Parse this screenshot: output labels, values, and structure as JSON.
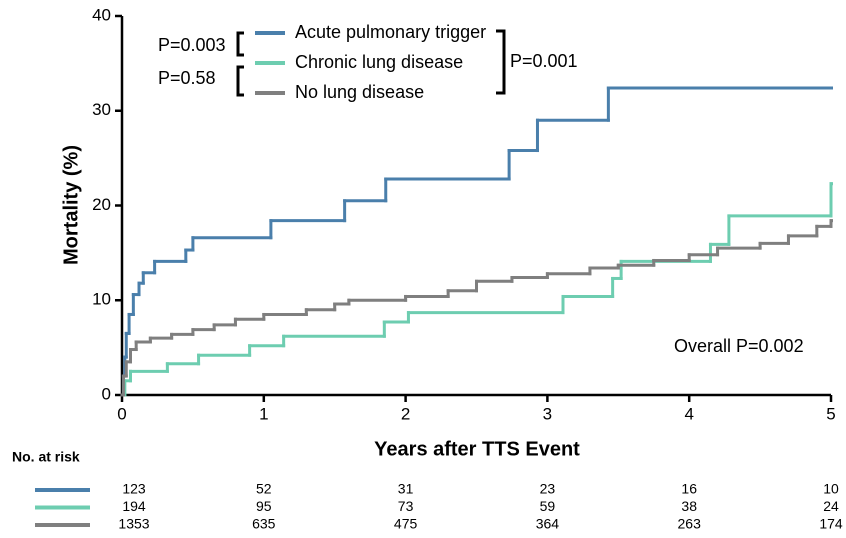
{
  "chart_data": {
    "type": "line",
    "step": "post",
    "xlabel": "Years after TTS Event",
    "ylabel": "Mortality (%)",
    "xlim": [
      0,
      5
    ],
    "xticks": [
      0,
      1,
      2,
      3,
      4,
      5
    ],
    "ylim": [
      0,
      40
    ],
    "yticks": [
      0,
      10,
      20,
      30,
      40
    ],
    "series": [
      {
        "name": "Acute pulmonary trigger",
        "color": "#4a7fab",
        "x": [
          0,
          0.01,
          0.02,
          0.03,
          0.05,
          0.08,
          0.12,
          0.15,
          0.23,
          0.45,
          0.5,
          1.05,
          1.57,
          1.86,
          2.73,
          2.93,
          3.43,
          5
        ],
        "values": [
          0,
          2,
          4,
          6.5,
          8.5,
          10.6,
          11.8,
          12.9,
          14.1,
          15.3,
          16.6,
          18.4,
          20.5,
          22.8,
          25.8,
          29,
          32.4,
          32.4
        ],
        "at_risk": [
          123,
          52,
          31,
          23,
          16,
          10
        ]
      },
      {
        "name": "Chronic lung disease",
        "color": "#6dcdb0",
        "x": [
          0,
          0.02,
          0.06,
          0.32,
          0.54,
          0.9,
          1.14,
          1.85,
          2.02,
          3.11,
          3.46,
          3.52,
          4.15,
          4.28,
          5
        ],
        "values": [
          0,
          1.5,
          2.5,
          3.3,
          4.2,
          5.2,
          6.2,
          7.7,
          8.7,
          10.4,
          12.3,
          14.1,
          15.9,
          18.9,
          22.3
        ],
        "at_risk": [
          194,
          95,
          73,
          59,
          38,
          24
        ]
      },
      {
        "name": "No lung disease",
        "color": "#7f7f7f",
        "x": [
          0,
          0.01,
          0.03,
          0.06,
          0.1,
          0.2,
          0.35,
          0.5,
          0.65,
          0.8,
          1,
          1.3,
          1.5,
          1.6,
          2,
          2.3,
          2.5,
          2.75,
          3,
          3.3,
          3.5,
          3.75,
          4,
          4.2,
          4.5,
          4.7,
          4.9,
          5
        ],
        "values": [
          0,
          2,
          3.5,
          4.8,
          5.6,
          6,
          6.4,
          6.9,
          7.4,
          8,
          8.5,
          9,
          9.6,
          10,
          10.4,
          11,
          12,
          12.4,
          12.8,
          13.4,
          13.7,
          14.2,
          14.8,
          15.5,
          16,
          16.8,
          17.8,
          18.4
        ],
        "at_risk": [
          1353,
          635,
          475,
          364,
          263,
          174
        ]
      }
    ],
    "annotations": [
      "P=0.003",
      "P=0.58",
      "P=0.001",
      "Overall P=0.002"
    ],
    "at_risk_title": "No. at risk"
  }
}
